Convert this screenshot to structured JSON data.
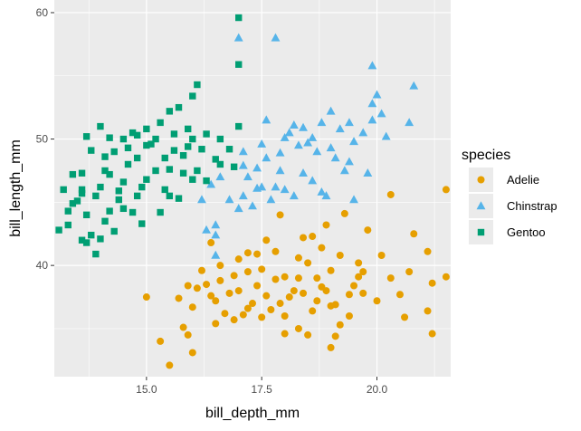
{
  "chart_data": {
    "type": "scatter",
    "title": "",
    "xlabel": "bill_depth_mm",
    "ylabel": "bill_length_mm",
    "xlim": [
      13.0,
      21.6
    ],
    "ylim": [
      31.2,
      61.0
    ],
    "x_ticks": [
      15.0,
      17.5,
      20.0
    ],
    "x_tick_labels": [
      "15.0",
      "17.5",
      "20.0"
    ],
    "y_ticks": [
      40,
      50,
      60
    ],
    "y_tick_labels": [
      "40",
      "50",
      "60"
    ],
    "grid": true,
    "legend": {
      "title": "species",
      "position": "right"
    },
    "colors": {
      "panel": "#ebebeb",
      "grid": "#ffffff",
      "Adelie": "#E69F00",
      "Chinstrap": "#56B4E9",
      "Gentoo": "#009E73"
    },
    "series": [
      {
        "name": "Adelie",
        "marker": "circle",
        "points": [
          [
            15.5,
            32.1
          ],
          [
            16.0,
            33.1
          ],
          [
            15.3,
            34.0
          ],
          [
            15.9,
            34.5
          ],
          [
            16.5,
            35.4
          ],
          [
            15.8,
            35.1
          ],
          [
            16.9,
            35.7
          ],
          [
            17.1,
            36.1
          ],
          [
            17.2,
            36.6
          ],
          [
            17.5,
            35.9
          ],
          [
            17.3,
            37.0
          ],
          [
            18.0,
            34.6
          ],
          [
            18.3,
            35.0
          ],
          [
            18.6,
            36.4
          ],
          [
            19.0,
            33.5
          ],
          [
            19.1,
            34.4
          ],
          [
            19.4,
            36.0
          ],
          [
            19.7,
            37.8
          ],
          [
            20.0,
            37.2
          ],
          [
            20.3,
            39.0
          ],
          [
            20.6,
            35.9
          ],
          [
            21.1,
            36.4
          ],
          [
            21.2,
            34.6
          ],
          [
            21.5,
            39.1
          ],
          [
            21.2,
            38.6
          ],
          [
            21.1,
            41.1
          ],
          [
            21.5,
            46.0
          ],
          [
            20.7,
            39.5
          ],
          [
            20.8,
            42.5
          ],
          [
            19.0,
            39.6
          ],
          [
            18.5,
            40.2
          ],
          [
            18.0,
            39.1
          ],
          [
            17.8,
            41.1
          ],
          [
            17.6,
            42.0
          ],
          [
            17.0,
            38.0
          ],
          [
            16.8,
            37.8
          ],
          [
            16.6,
            38.8
          ],
          [
            16.4,
            37.6
          ],
          [
            16.2,
            39.6
          ],
          [
            16.0,
            36.7
          ],
          [
            15.7,
            37.4
          ],
          [
            15.0,
            37.5
          ],
          [
            16.5,
            37.2
          ],
          [
            17.9,
            44.0
          ],
          [
            18.4,
            42.2
          ],
          [
            18.9,
            43.2
          ],
          [
            19.3,
            44.1
          ],
          [
            19.8,
            42.8
          ],
          [
            20.3,
            45.6
          ],
          [
            19.6,
            40.2
          ],
          [
            19.2,
            40.8
          ],
          [
            18.7,
            39.0
          ],
          [
            18.1,
            37.5
          ],
          [
            17.7,
            36.5
          ],
          [
            17.4,
            38.4
          ],
          [
            19.5,
            38.4
          ],
          [
            18.3,
            39.0
          ],
          [
            17.2,
            41.0
          ],
          [
            16.6,
            40.0
          ],
          [
            18.8,
            38.3
          ],
          [
            19.1,
            36.9
          ],
          [
            18.2,
            38.0
          ],
          [
            17.9,
            37.0
          ],
          [
            17.0,
            40.5
          ],
          [
            18.6,
            42.3
          ],
          [
            19.7,
            39.5
          ],
          [
            20.1,
            40.8
          ],
          [
            18.4,
            37.8
          ],
          [
            17.5,
            39.7
          ],
          [
            16.9,
            39.2
          ],
          [
            16.3,
            38.5
          ],
          [
            17.6,
            37.6
          ],
          [
            18.9,
            38.0
          ],
          [
            19.4,
            37.7
          ],
          [
            18.0,
            36.0
          ],
          [
            16.7,
            36.2
          ],
          [
            17.2,
            39.5
          ],
          [
            18.8,
            41.4
          ],
          [
            19.0,
            36.8
          ],
          [
            17.8,
            38.9
          ],
          [
            16.1,
            38.2
          ],
          [
            18.5,
            34.5
          ],
          [
            19.2,
            35.3
          ],
          [
            16.4,
            41.8
          ],
          [
            17.4,
            40.9
          ],
          [
            18.3,
            40.6
          ],
          [
            19.6,
            39.1
          ],
          [
            20.5,
            37.7
          ],
          [
            15.9,
            38.4
          ],
          [
            18.7,
            37.2
          ]
        ]
      },
      {
        "name": "Chinstrap",
        "marker": "triangle",
        "points": [
          [
            17.0,
            58.0
          ],
          [
            17.8,
            58.0
          ],
          [
            19.9,
            55.8
          ],
          [
            20.8,
            54.2
          ],
          [
            20.0,
            53.5
          ],
          [
            19.9,
            52.8
          ],
          [
            19.0,
            52.2
          ],
          [
            18.8,
            51.3
          ],
          [
            18.4,
            50.9
          ],
          [
            17.6,
            51.5
          ],
          [
            18.1,
            50.5
          ],
          [
            19.4,
            51.3
          ],
          [
            20.1,
            52.0
          ],
          [
            19.2,
            50.8
          ],
          [
            18.5,
            49.7
          ],
          [
            17.9,
            48.9
          ],
          [
            17.1,
            49.0
          ],
          [
            18.3,
            49.5
          ],
          [
            19.5,
            49.8
          ],
          [
            19.1,
            48.5
          ],
          [
            18.0,
            50.1
          ],
          [
            19.7,
            50.5
          ],
          [
            20.7,
            51.3
          ],
          [
            18.7,
            49.0
          ],
          [
            17.4,
            47.7
          ],
          [
            17.6,
            48.5
          ],
          [
            16.6,
            47.0
          ],
          [
            16.4,
            46.4
          ],
          [
            16.2,
            45.2
          ],
          [
            16.5,
            43.2
          ],
          [
            16.3,
            42.8
          ],
          [
            16.5,
            40.8
          ],
          [
            17.4,
            46.1
          ],
          [
            18.0,
            46.0
          ],
          [
            18.6,
            46.7
          ],
          [
            19.3,
            47.5
          ],
          [
            18.9,
            45.5
          ],
          [
            17.7,
            45.2
          ],
          [
            17.3,
            44.7
          ],
          [
            17.1,
            45.5
          ],
          [
            17.0,
            44.5
          ],
          [
            17.5,
            46.2
          ],
          [
            19.5,
            45.2
          ],
          [
            18.2,
            45.5
          ],
          [
            19.8,
            47.3
          ],
          [
            19.4,
            48.2
          ],
          [
            17.9,
            47.5
          ],
          [
            16.8,
            45.2
          ],
          [
            17.2,
            47.0
          ],
          [
            18.4,
            47.3
          ],
          [
            17.1,
            47.9
          ],
          [
            18.8,
            45.8
          ],
          [
            19.9,
            51.5
          ],
          [
            16.5,
            42.4
          ],
          [
            17.8,
            46.2
          ],
          [
            18.6,
            50.1
          ],
          [
            20.2,
            50.2
          ],
          [
            19.0,
            49.3
          ],
          [
            17.5,
            49.6
          ],
          [
            18.2,
            51.1
          ]
        ]
      },
      {
        "name": "Gentoo",
        "marker": "square",
        "points": [
          [
            17.0,
            59.6
          ],
          [
            17.0,
            55.9
          ],
          [
            16.1,
            54.3
          ],
          [
            16.0,
            53.4
          ],
          [
            15.7,
            52.5
          ],
          [
            15.5,
            52.2
          ],
          [
            15.3,
            51.3
          ],
          [
            17.0,
            51.0
          ],
          [
            16.3,
            50.4
          ],
          [
            16.0,
            50.0
          ],
          [
            15.9,
            50.8
          ],
          [
            15.6,
            50.4
          ],
          [
            15.2,
            50.0
          ],
          [
            15.0,
            50.8
          ],
          [
            14.7,
            50.5
          ],
          [
            14.5,
            50.0
          ],
          [
            14.2,
            50.1
          ],
          [
            14.0,
            51.0
          ],
          [
            13.7,
            50.2
          ],
          [
            13.8,
            49.1
          ],
          [
            14.1,
            48.6
          ],
          [
            14.6,
            49.3
          ],
          [
            15.1,
            49.6
          ],
          [
            15.4,
            48.5
          ],
          [
            15.8,
            48.7
          ],
          [
            16.2,
            49.2
          ],
          [
            16.5,
            48.4
          ],
          [
            16.1,
            47.5
          ],
          [
            15.5,
            47.6
          ],
          [
            15.0,
            46.8
          ],
          [
            14.5,
            46.6
          ],
          [
            14.2,
            47.2
          ],
          [
            14.0,
            46.2
          ],
          [
            13.9,
            45.5
          ],
          [
            13.5,
            45.1
          ],
          [
            13.2,
            46.0
          ],
          [
            13.4,
            44.9
          ],
          [
            13.7,
            44.0
          ],
          [
            14.1,
            43.5
          ],
          [
            14.5,
            44.5
          ],
          [
            14.8,
            45.5
          ],
          [
            15.3,
            44.2
          ],
          [
            15.7,
            45.3
          ],
          [
            16.3,
            46.7
          ],
          [
            16.6,
            48.0
          ],
          [
            16.8,
            49.2
          ],
          [
            16.9,
            47.8
          ],
          [
            14.9,
            43.3
          ],
          [
            14.3,
            42.7
          ],
          [
            13.8,
            42.4
          ],
          [
            13.6,
            42.0
          ],
          [
            13.3,
            43.2
          ],
          [
            13.1,
            42.8
          ],
          [
            13.9,
            40.9
          ],
          [
            13.7,
            41.8
          ],
          [
            14.0,
            42.1
          ],
          [
            13.4,
            47.2
          ],
          [
            13.6,
            47.3
          ],
          [
            14.8,
            48.5
          ],
          [
            16.6,
            50.0
          ],
          [
            15.9,
            49.4
          ],
          [
            14.6,
            48.0
          ],
          [
            15.2,
            47.5
          ],
          [
            14.4,
            45.2
          ],
          [
            15.5,
            45.5
          ],
          [
            14.9,
            46.2
          ],
          [
            13.6,
            46.0
          ],
          [
            16.0,
            46.8
          ],
          [
            15.8,
            47.3
          ],
          [
            14.3,
            49.0
          ],
          [
            15.0,
            49.5
          ],
          [
            14.1,
            47.5
          ],
          [
            14.7,
            44.2
          ],
          [
            13.3,
            44.3
          ],
          [
            13.6,
            45.7
          ],
          [
            14.4,
            45.9
          ],
          [
            15.4,
            46.0
          ],
          [
            14.2,
            44.3
          ],
          [
            15.6,
            49.1
          ],
          [
            14.8,
            50.3
          ]
        ]
      }
    ]
  }
}
